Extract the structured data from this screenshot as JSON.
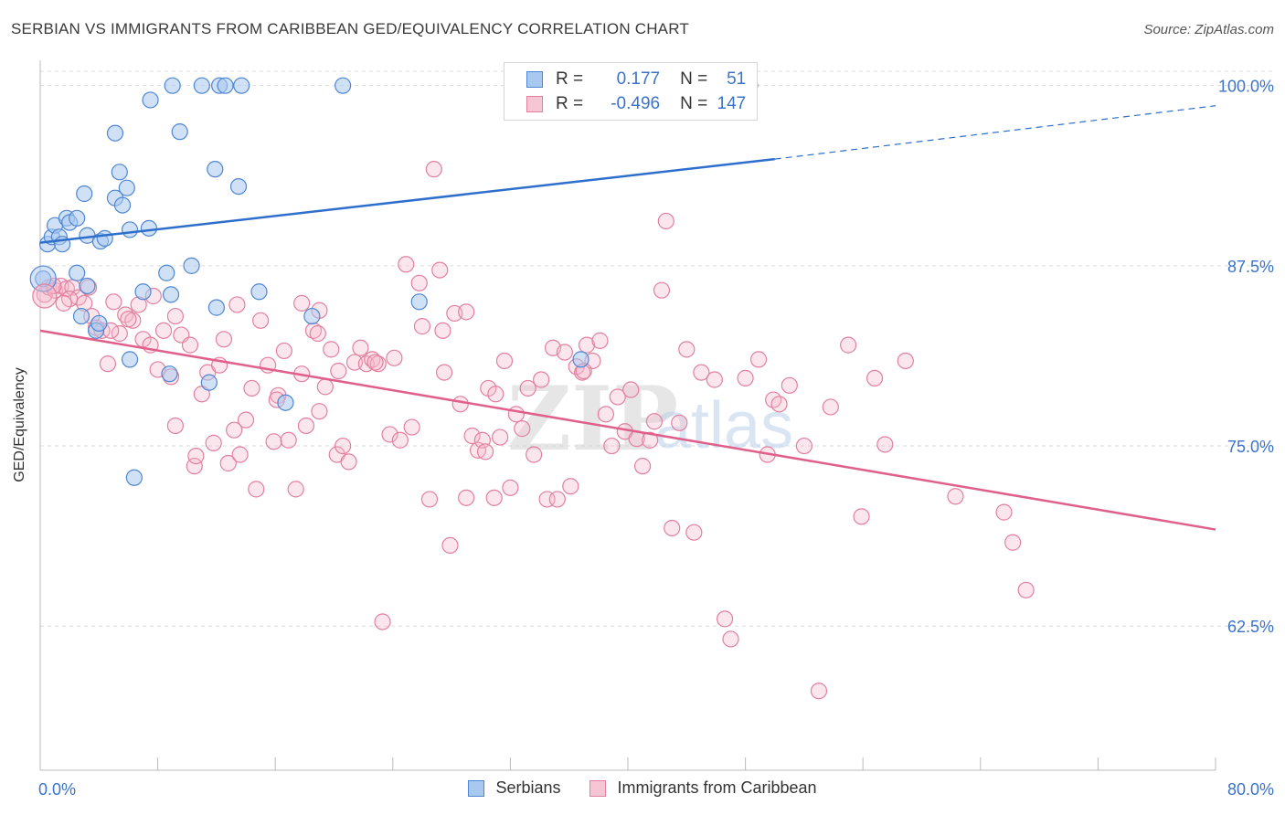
{
  "title": "SERBIAN VS IMMIGRANTS FROM CARIBBEAN GED/EQUIVALENCY CORRELATION CHART",
  "source": "Source: ZipAtlas.com",
  "watermark": {
    "zip": "ZIP",
    "atlas": "atlas"
  },
  "legend": {
    "r_label": "R =",
    "n_label": "N =",
    "rows": [
      {
        "r": "0.177",
        "n": "51"
      },
      {
        "r": "-0.496",
        "n": "147"
      }
    ]
  },
  "bottom_legend": [
    "Serbians",
    "Immigrants from Caribbean"
  ],
  "colors": {
    "blue_fill": "#a9c8ef",
    "blue_stroke": "#4f87d3",
    "blue_line": "#2f6fcc",
    "pink_fill": "#f6b8cb",
    "pink_stroke": "#e2809f",
    "pink_line": "#e0608c",
    "tick_label": "#3b73c8",
    "grid": "#dcdcdc"
  },
  "chart_data": {
    "type": "scatter",
    "title": "SERBIAN VS IMMIGRANTS FROM CARIBBEAN GED/EQUIVALENCY CORRELATION CHART",
    "xlabel": "",
    "ylabel": "GED/Equivalency",
    "xlim": [
      0,
      80
    ],
    "ylim": [
      52.5,
      101.5
    ],
    "x_tick_labels": [
      "0.0%",
      "80.0%"
    ],
    "y_ticks": [
      62.5,
      75.0,
      87.5,
      100.0
    ],
    "y_tick_labels": [
      "62.5%",
      "75.0%",
      "87.5%",
      "100.0%"
    ],
    "grid": true,
    "legend_position": "top-center",
    "series": [
      {
        "name": "Serbians",
        "r": 0.177,
        "n": 51,
        "trend": {
          "x0": 0,
          "y0": 89.1,
          "x1": 50,
          "y1": 94.9,
          "dash_to_x": 80,
          "dash_to_y": 98.6
        },
        "points": [
          [
            0.2,
            86.6
          ],
          [
            0.5,
            89.0
          ],
          [
            0.8,
            89.5
          ],
          [
            1.0,
            90.3
          ],
          [
            1.3,
            89.5
          ],
          [
            1.5,
            89.0
          ],
          [
            1.8,
            90.8
          ],
          [
            2.0,
            90.5
          ],
          [
            2.5,
            90.8
          ],
          [
            3.2,
            89.6
          ],
          [
            4.1,
            89.2
          ],
          [
            4.4,
            89.4
          ],
          [
            2.5,
            87.0
          ],
          [
            3.2,
            86.1
          ],
          [
            2.8,
            84.0
          ],
          [
            3.8,
            83.0
          ],
          [
            6.1,
            90.0
          ],
          [
            7.4,
            90.1
          ],
          [
            5.1,
            92.2
          ],
          [
            5.9,
            92.9
          ],
          [
            5.6,
            91.7
          ],
          [
            5.4,
            94.0
          ],
          [
            5.1,
            96.7
          ],
          [
            7.5,
            99.0
          ],
          [
            9.5,
            96.8
          ],
          [
            11.9,
            94.2
          ],
          [
            13.5,
            93.0
          ],
          [
            9.0,
            100.0
          ],
          [
            11.0,
            100.0
          ],
          [
            12.2,
            100.0
          ],
          [
            12.6,
            100.0
          ],
          [
            13.7,
            100.0
          ],
          [
            20.6,
            100.0
          ],
          [
            37.5,
            100.0
          ],
          [
            48.3,
            100.0
          ],
          [
            8.6,
            87.0
          ],
          [
            10.3,
            87.5
          ],
          [
            7.0,
            85.7
          ],
          [
            8.9,
            85.5
          ],
          [
            14.9,
            85.7
          ],
          [
            18.5,
            84.0
          ],
          [
            25.8,
            85.0
          ],
          [
            36.8,
            81.0
          ],
          [
            6.1,
            81.0
          ],
          [
            8.8,
            80.0
          ],
          [
            11.5,
            79.4
          ],
          [
            16.7,
            78.0
          ],
          [
            6.4,
            72.8
          ],
          [
            4.0,
            83.5
          ],
          [
            12.0,
            84.6
          ],
          [
            3.0,
            92.5
          ]
        ]
      },
      {
        "name": "Immigrants from Caribbean",
        "r": -0.496,
        "n": 147,
        "trend": {
          "x0": 0,
          "y0": 83.0,
          "x1": 80,
          "y1": 69.2
        },
        "points": [
          [
            0.3,
            85.5
          ],
          [
            0.6,
            86.0
          ],
          [
            1.0,
            85.8
          ],
          [
            1.4,
            86.1
          ],
          [
            1.8,
            85.9
          ],
          [
            2.2,
            86.0
          ],
          [
            2.6,
            85.3
          ],
          [
            3.0,
            84.9
          ],
          [
            3.5,
            84.0
          ],
          [
            3.8,
            83.2
          ],
          [
            4.2,
            83.0
          ],
          [
            4.6,
            80.7
          ],
          [
            5.0,
            85.0
          ],
          [
            5.4,
            82.8
          ],
          [
            5.8,
            84.1
          ],
          [
            6.3,
            83.7
          ],
          [
            6.7,
            84.8
          ],
          [
            7.0,
            82.4
          ],
          [
            7.5,
            82.0
          ],
          [
            8.0,
            80.3
          ],
          [
            8.4,
            83.0
          ],
          [
            8.9,
            79.8
          ],
          [
            9.2,
            76.4
          ],
          [
            9.6,
            82.7
          ],
          [
            10.2,
            82.0
          ],
          [
            10.5,
            73.6
          ],
          [
            11.0,
            78.6
          ],
          [
            11.4,
            80.1
          ],
          [
            11.8,
            75.2
          ],
          [
            12.2,
            80.6
          ],
          [
            12.5,
            82.4
          ],
          [
            12.8,
            73.8
          ],
          [
            13.2,
            76.1
          ],
          [
            13.6,
            74.4
          ],
          [
            14.0,
            76.8
          ],
          [
            14.4,
            79.0
          ],
          [
            14.7,
            72.0
          ],
          [
            15.0,
            83.7
          ],
          [
            15.5,
            80.6
          ],
          [
            15.9,
            75.3
          ],
          [
            16.2,
            78.5
          ],
          [
            16.6,
            81.6
          ],
          [
            16.9,
            75.4
          ],
          [
            17.4,
            72.0
          ],
          [
            17.8,
            80.0
          ],
          [
            18.1,
            76.4
          ],
          [
            18.6,
            83.0
          ],
          [
            19.0,
            77.4
          ],
          [
            19.4,
            79.1
          ],
          [
            19.8,
            81.7
          ],
          [
            20.2,
            74.4
          ],
          [
            20.6,
            75.0
          ],
          [
            21.0,
            73.9
          ],
          [
            21.4,
            80.8
          ],
          [
            21.8,
            81.8
          ],
          [
            22.2,
            80.7
          ],
          [
            22.6,
            81.0
          ],
          [
            23.0,
            80.7
          ],
          [
            23.3,
            62.8
          ],
          [
            23.8,
            75.8
          ],
          [
            24.1,
            81.1
          ],
          [
            24.5,
            75.4
          ],
          [
            24.9,
            87.6
          ],
          [
            25.3,
            76.3
          ],
          [
            25.8,
            86.3
          ],
          [
            26.0,
            83.3
          ],
          [
            26.5,
            71.3
          ],
          [
            26.8,
            94.2
          ],
          [
            27.2,
            87.2
          ],
          [
            27.5,
            80.1
          ],
          [
            27.9,
            68.1
          ],
          [
            28.2,
            84.2
          ],
          [
            28.6,
            77.9
          ],
          [
            29.0,
            71.4
          ],
          [
            29.4,
            75.7
          ],
          [
            29.8,
            74.7
          ],
          [
            30.1,
            75.4
          ],
          [
            30.5,
            79.0
          ],
          [
            30.9,
            71.4
          ],
          [
            31.3,
            75.6
          ],
          [
            31.6,
            80.9
          ],
          [
            32.0,
            72.1
          ],
          [
            32.4,
            77.2
          ],
          [
            32.8,
            76.2
          ],
          [
            33.2,
            79.0
          ],
          [
            33.6,
            74.4
          ],
          [
            34.1,
            79.6
          ],
          [
            34.5,
            71.3
          ],
          [
            34.9,
            81.8
          ],
          [
            35.2,
            71.3
          ],
          [
            35.7,
            81.5
          ],
          [
            36.1,
            72.2
          ],
          [
            36.5,
            80.5
          ],
          [
            36.9,
            80.1
          ],
          [
            37.2,
            82.0
          ],
          [
            37.6,
            80.9
          ],
          [
            38.1,
            82.3
          ],
          [
            38.5,
            77.2
          ],
          [
            38.9,
            75.0
          ],
          [
            39.3,
            78.4
          ],
          [
            39.8,
            76.0
          ],
          [
            40.2,
            78.9
          ],
          [
            40.6,
            75.5
          ],
          [
            41.0,
            73.6
          ],
          [
            41.5,
            75.4
          ],
          [
            41.8,
            76.7
          ],
          [
            42.3,
            85.8
          ],
          [
            42.6,
            90.6
          ],
          [
            43.0,
            69.3
          ],
          [
            43.5,
            76.6
          ],
          [
            44.0,
            81.7
          ],
          [
            44.5,
            69.0
          ],
          [
            45.0,
            80.1
          ],
          [
            45.9,
            79.6
          ],
          [
            46.6,
            63.0
          ],
          [
            47.0,
            61.6
          ],
          [
            48.0,
            79.7
          ],
          [
            48.9,
            81.0
          ],
          [
            49.5,
            74.4
          ],
          [
            49.9,
            78.2
          ],
          [
            50.3,
            77.9
          ],
          [
            51.0,
            79.2
          ],
          [
            52.0,
            75.0
          ],
          [
            53.0,
            58.0
          ],
          [
            53.8,
            77.7
          ],
          [
            55.0,
            82.0
          ],
          [
            55.9,
            70.1
          ],
          [
            56.8,
            79.7
          ],
          [
            57.5,
            75.1
          ],
          [
            58.9,
            80.9
          ],
          [
            62.3,
            71.5
          ],
          [
            65.6,
            70.4
          ],
          [
            66.2,
            68.3
          ],
          [
            67.1,
            65.0
          ],
          [
            37.0,
            80.2
          ],
          [
            20.3,
            80.2
          ],
          [
            31.0,
            78.6
          ],
          [
            13.4,
            84.8
          ],
          [
            9.2,
            84.0
          ],
          [
            7.7,
            85.4
          ],
          [
            17.8,
            84.9
          ],
          [
            19.0,
            84.4
          ],
          [
            29.0,
            84.3
          ],
          [
            22.8,
            80.8
          ],
          [
            3.3,
            86.0
          ],
          [
            2.0,
            85.2
          ],
          [
            0.9,
            86.1
          ],
          [
            1.6,
            84.9
          ],
          [
            4.8,
            83.0
          ],
          [
            6.0,
            83.8
          ],
          [
            16.1,
            78.2
          ],
          [
            18.9,
            82.8
          ],
          [
            10.6,
            74.3
          ],
          [
            30.3,
            74.6
          ],
          [
            27.4,
            83.0
          ]
        ]
      }
    ]
  }
}
